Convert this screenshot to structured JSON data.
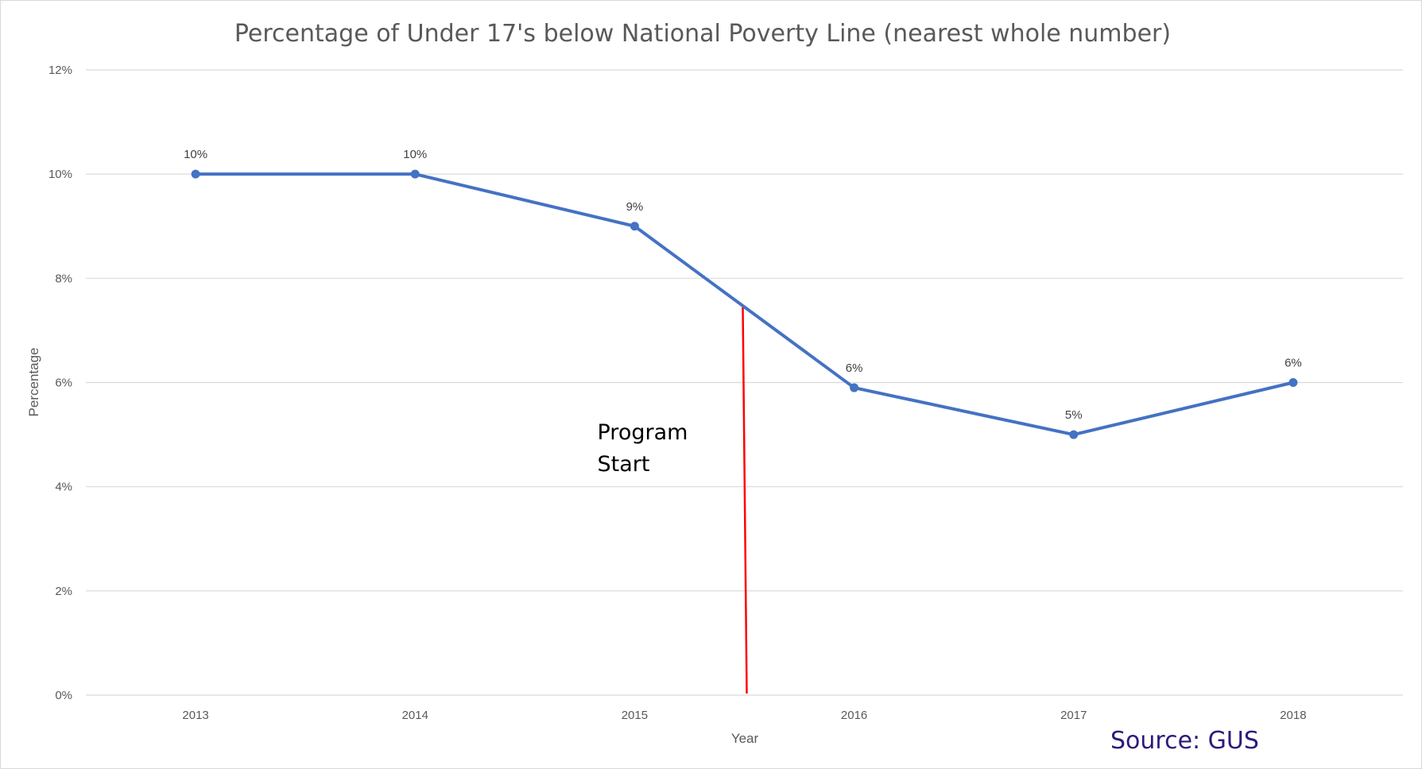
{
  "chart_data": {
    "type": "line",
    "title": "Percentage of Under 17's below National Poverty Line (nearest whole number)",
    "xlabel": "Year",
    "ylabel": "Percentage",
    "categories": [
      "2013",
      "2014",
      "2015",
      "2016",
      "2017",
      "2018"
    ],
    "series": [
      {
        "values": [
          10,
          10,
          9,
          5.9,
          5,
          6
        ],
        "data_labels": [
          "10%",
          "10%",
          "9%",
          "6%",
          "5%",
          "6%"
        ],
        "color": "#4472c4"
      }
    ],
    "ylim": [
      0,
      12
    ],
    "yticks": [
      0,
      2,
      4,
      6,
      8,
      10,
      12
    ],
    "ytick_labels": [
      "0%",
      "2%",
      "4%",
      "6%",
      "8%",
      "10%",
      "12%"
    ],
    "grid": true,
    "legend": "none",
    "annotations": [
      {
        "text_lines": [
          "Program",
          "Start"
        ],
        "marker": "vertical-line",
        "x_position": 2.5,
        "color": "#ff0000"
      }
    ],
    "source_text": "Source:  GUS",
    "source_color": "#2e1a7a"
  }
}
